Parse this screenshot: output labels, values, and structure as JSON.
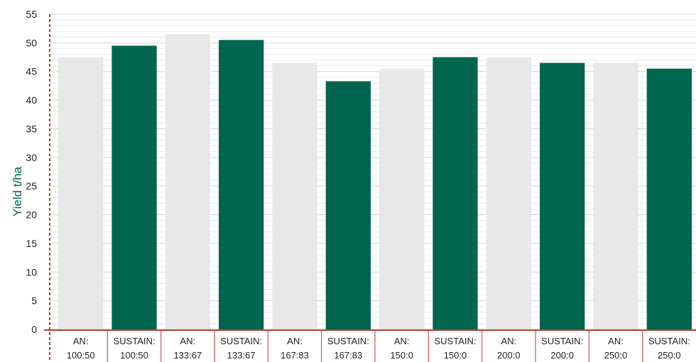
{
  "chart_data": {
    "type": "bar",
    "ylabel": "Yield t/ha",
    "ylim": [
      0,
      55
    ],
    "yticks": [
      0,
      5,
      10,
      15,
      20,
      25,
      30,
      35,
      40,
      45,
      50,
      55
    ],
    "grid": true,
    "categories": [
      [
        "AN:",
        "100:50"
      ],
      [
        "SUSTAIN:",
        "100:50"
      ],
      [
        "AN:",
        "133:67"
      ],
      [
        "SUSTAIN:",
        "133:67"
      ],
      [
        "AN:",
        "167:83"
      ],
      [
        "SUSTAIN:",
        "167:83"
      ],
      [
        "AN:",
        "150:0"
      ],
      [
        "SUSTAIN:",
        "150:0"
      ],
      [
        "AN:",
        "200:0"
      ],
      [
        "SUSTAIN:",
        "200:0"
      ],
      [
        "AN:",
        "250:0"
      ],
      [
        "SUSTAIN:",
        "250:0"
      ]
    ],
    "values": [
      47.5,
      49.5,
      51.5,
      50.5,
      46.5,
      43.3,
      45.5,
      47.5,
      47.5,
      46.5,
      46.5,
      45.5
    ],
    "colors": {
      "AN": "#e8e8e8",
      "SUSTAIN": "#00654f",
      "axis_title": "#00654f",
      "axis_line": "#c0392b",
      "grid": "#dddddd"
    }
  }
}
